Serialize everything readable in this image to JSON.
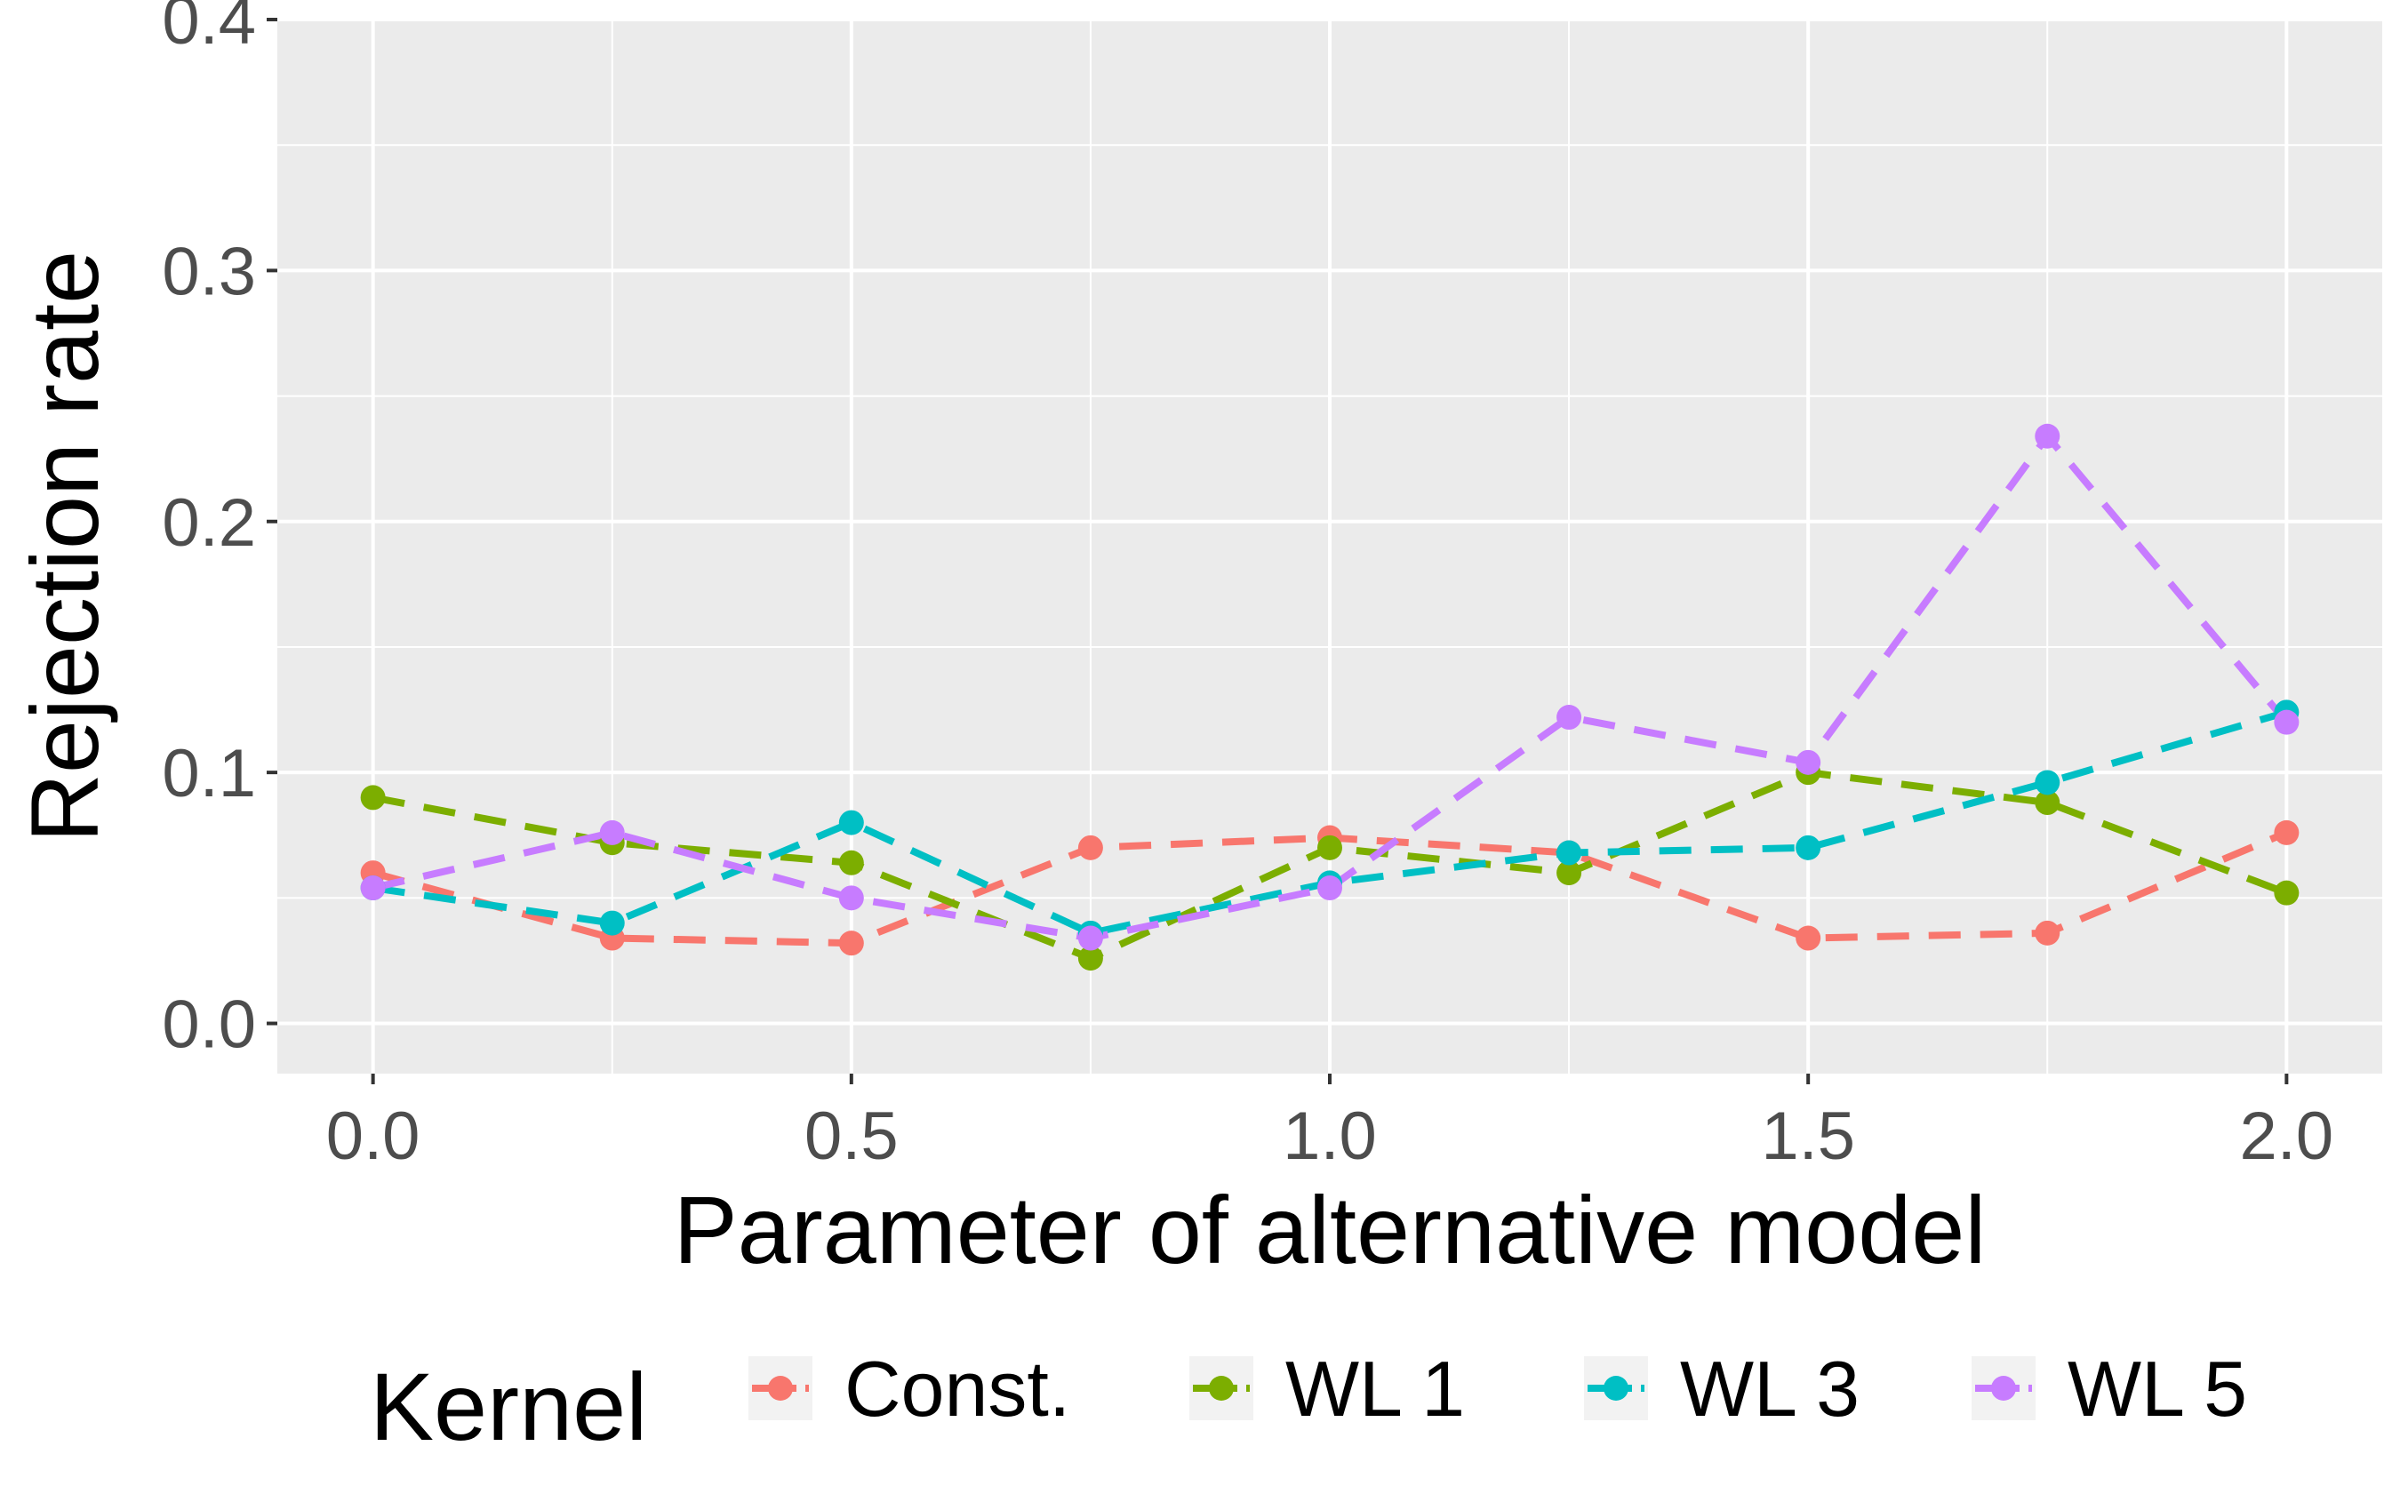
{
  "chart_data": {
    "type": "line",
    "xlabel": "Parameter of alternative model",
    "ylabel": "Rejection rate",
    "x": [
      0.0,
      0.25,
      0.5,
      0.75,
      1.0,
      1.25,
      1.5,
      1.75,
      2.0
    ],
    "x_ticks": [
      0.0,
      0.5,
      1.0,
      1.5,
      2.0
    ],
    "x_tick_labels": [
      "0.0",
      "0.5",
      "1.0",
      "1.5",
      "2.0"
    ],
    "xlim": [
      -0.1,
      2.1
    ],
    "y_ticks": [
      0.0,
      0.1,
      0.2,
      0.3,
      0.4
    ],
    "y_tick_labels": [
      "0.0",
      "0.1",
      "0.2",
      "0.3",
      "0.4"
    ],
    "ylim": [
      -0.02,
      0.4
    ],
    "grid": true,
    "line_style": "dashed",
    "legend": {
      "title": "Kernel",
      "position": "bottom"
    },
    "series": [
      {
        "name": "Const.",
        "color": "#F8766D",
        "values": [
          0.06,
          0.034,
          0.032,
          0.07,
          0.074,
          0.068,
          0.034,
          0.036,
          0.076
        ]
      },
      {
        "name": "WL 1",
        "color": "#7CAE00",
        "values": [
          0.09,
          0.072,
          0.064,
          0.026,
          0.07,
          0.06,
          0.1,
          0.088,
          0.052
        ]
      },
      {
        "name": "WL 3",
        "color": "#00BFC4",
        "values": [
          0.054,
          0.04,
          0.08,
          0.036,
          0.056,
          0.068,
          0.07,
          0.096,
          0.124
        ]
      },
      {
        "name": "WL 5",
        "color": "#C77CFF",
        "values": [
          0.054,
          0.076,
          0.05,
          0.034,
          0.054,
          0.122,
          0.104,
          0.234,
          0.12
        ]
      }
    ]
  }
}
